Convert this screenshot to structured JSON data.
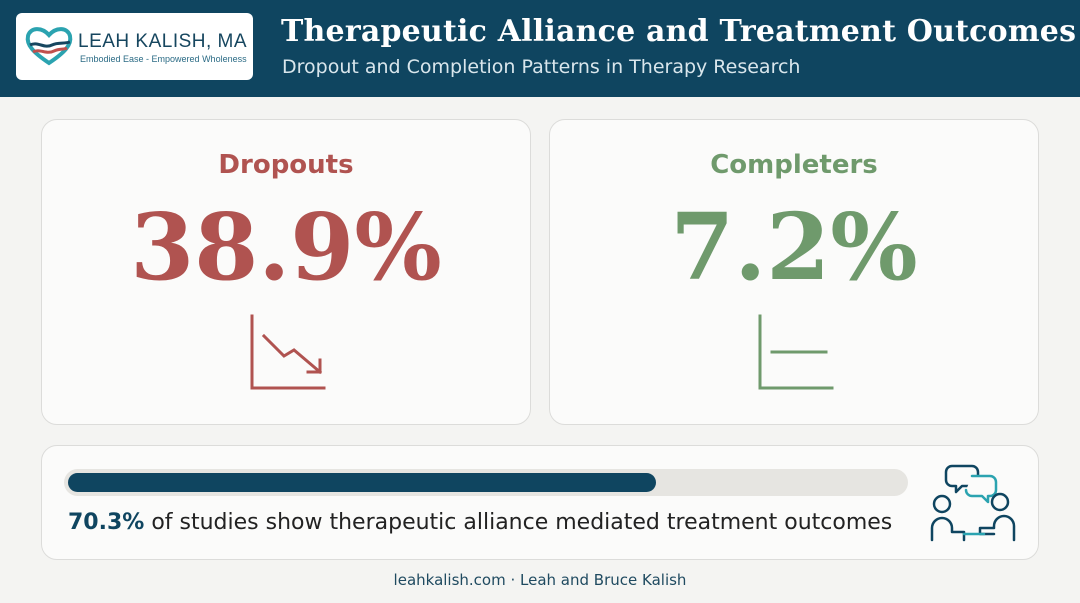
{
  "header": {
    "logo": {
      "name": "LEAH KALISH, MA",
      "tagline": "Embodied Ease - Empowered Wholeness"
    },
    "title": "Therapeutic Alliance and Treatment Outcomes",
    "subtitle": "Dropout and Completion Patterns in Therapy Research"
  },
  "stats": {
    "dropouts": {
      "label": "Dropouts",
      "value": "38.9%",
      "icon": "trend-down-icon",
      "color": "#b05350"
    },
    "completers": {
      "label": "Completers",
      "value": "7.2%",
      "icon": "trend-flat-icon",
      "color": "#6f9a6c"
    }
  },
  "alliance": {
    "percent_value": 70.3,
    "percent_text": "70.3%",
    "text": " of studies show therapeutic alliance mediated treatment outcomes",
    "icon": "therapy-conversation-icon"
  },
  "footer": {
    "text": "leahkalish.com · Leah and Bruce Kalish"
  },
  "colors": {
    "primary": "#0f4560",
    "dropouts": "#b05350",
    "completers": "#6f9a6c",
    "accent": "#2ba3b0"
  }
}
